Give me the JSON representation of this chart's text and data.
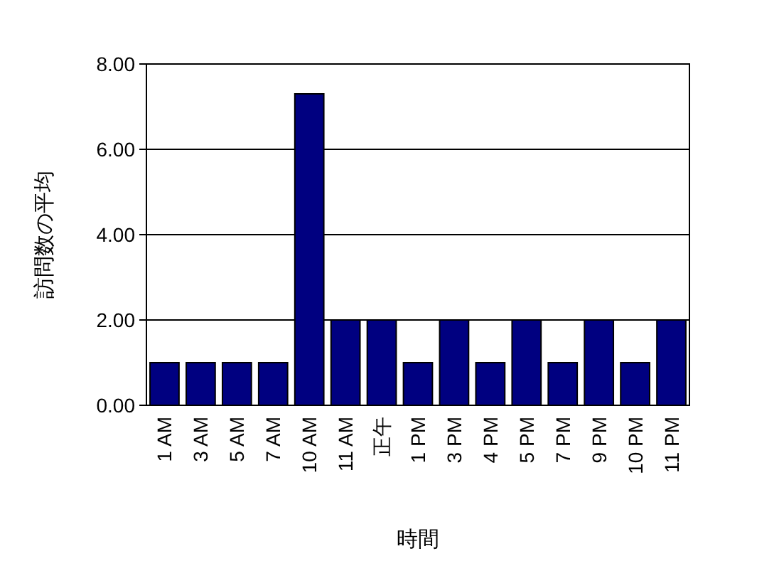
{
  "chart_data": {
    "type": "bar",
    "xlabel": "時間",
    "ylabel": "訪問数の平均",
    "categories": [
      "1 AM",
      "3 AM",
      "5 AM",
      "7 AM",
      "10 AM",
      "11 AM",
      "正午",
      "1 PM",
      "3 PM",
      "4 PM",
      "5 PM",
      "7 PM",
      "9 PM",
      "10 PM",
      "11 PM"
    ],
    "values": [
      1,
      1,
      1,
      1,
      7.3,
      2,
      2,
      1,
      2,
      1,
      2,
      1,
      2,
      1,
      2
    ],
    "color": "#000080",
    "ylim": [
      0,
      8
    ],
    "yticks": [
      {
        "value": 0,
        "label": "0.00"
      },
      {
        "value": 2,
        "label": "2.00"
      },
      {
        "value": 4,
        "label": "4.00"
      },
      {
        "value": 6,
        "label": "6.00"
      },
      {
        "value": 8,
        "label": "8.00"
      }
    ],
    "grid": "y"
  }
}
